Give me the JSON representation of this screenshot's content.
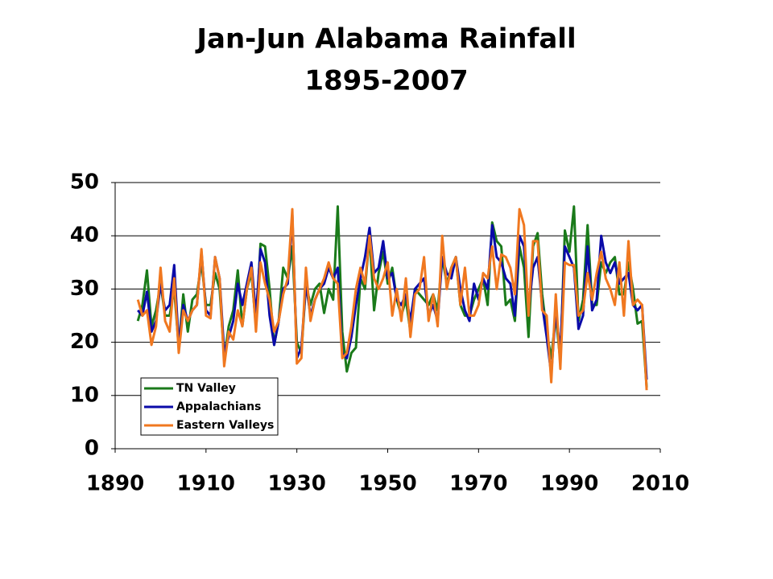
{
  "chart_data": {
    "type": "line",
    "title": "Jan-Jun Alabama Rainfall",
    "subtitle": "1895-2007",
    "x": [
      1895,
      1896,
      1897,
      1898,
      1899,
      1900,
      1901,
      1902,
      1903,
      1904,
      1905,
      1906,
      1907,
      1908,
      1909,
      1910,
      1911,
      1912,
      1913,
      1914,
      1915,
      1916,
      1917,
      1918,
      1919,
      1920,
      1921,
      1922,
      1923,
      1924,
      1925,
      1926,
      1927,
      1928,
      1929,
      1930,
      1931,
      1932,
      1933,
      1934,
      1935,
      1936,
      1937,
      1938,
      1939,
      1940,
      1941,
      1942,
      1943,
      1944,
      1945,
      1946,
      1947,
      1948,
      1949,
      1950,
      1951,
      1952,
      1953,
      1954,
      1955,
      1956,
      1957,
      1958,
      1959,
      1960,
      1961,
      1962,
      1963,
      1964,
      1965,
      1966,
      1967,
      1968,
      1969,
      1970,
      1971,
      1972,
      1973,
      1974,
      1975,
      1976,
      1977,
      1978,
      1979,
      1980,
      1981,
      1982,
      1983,
      1984,
      1985,
      1986,
      1987,
      1988,
      1989,
      1990,
      1991,
      1992,
      1993,
      1994,
      1995,
      1996,
      1997,
      1998,
      1999,
      2000,
      2001,
      2002,
      2003,
      2004,
      2005,
      2006,
      2007
    ],
    "series": [
      {
        "name": "TN Valley",
        "color": "#1a7a1a",
        "values": [
          24,
          27,
          33.5,
          23,
          26,
          31,
          25,
          25,
          30,
          19,
          29,
          22,
          28,
          29,
          35,
          27,
          27,
          33,
          30,
          17,
          23,
          26,
          33.5,
          23,
          30,
          33,
          23,
          38.5,
          38,
          30,
          19.5,
          24,
          34,
          32,
          38,
          20,
          18,
          31,
          27,
          30,
          31,
          25.5,
          30,
          28,
          45.5,
          22,
          14.5,
          18,
          19,
          32,
          30,
          40,
          26,
          33,
          37,
          31,
          34,
          28,
          25,
          28,
          22,
          30,
          29,
          28,
          27,
          29,
          26,
          36,
          31,
          34,
          36,
          27,
          25,
          25,
          28,
          30,
          32,
          27,
          42.5,
          39,
          38,
          27,
          28,
          24,
          38,
          34,
          21,
          38,
          40.5,
          29,
          22,
          17,
          25,
          16.5,
          41,
          37,
          45.5,
          24,
          28,
          42,
          27,
          27,
          35,
          33,
          35,
          36,
          29,
          29,
          35,
          30,
          23.5,
          24,
          11.5
        ]
      },
      {
        "name": "Appalachians",
        "color": "#0a0aa8",
        "values": [
          26,
          25,
          29.5,
          22,
          24,
          31,
          26,
          27,
          34.5,
          19.5,
          27,
          24,
          26,
          27,
          37,
          26,
          25,
          36,
          32,
          18,
          21,
          24,
          31,
          27,
          31,
          35,
          25,
          37.5,
          35,
          25,
          19.5,
          24,
          30,
          31,
          44,
          17,
          19,
          31,
          25,
          28,
          30,
          31,
          34,
          32,
          34,
          18,
          17,
          21,
          27,
          32,
          36,
          41.5,
          33,
          34,
          39,
          32,
          33,
          28,
          27,
          29,
          24,
          30,
          31,
          32,
          25,
          27,
          24,
          36,
          33,
          32,
          36,
          30,
          26,
          24,
          31,
          28,
          32,
          30,
          42,
          36,
          35,
          32,
          31,
          25,
          40,
          38,
          26,
          34,
          36,
          27,
          21,
          14,
          26,
          18,
          38,
          36,
          34,
          22.5,
          25,
          38,
          26,
          28,
          40,
          35,
          33,
          35,
          31,
          32,
          33,
          27,
          26,
          27,
          13
        ]
      },
      {
        "name": "Eastern Valleys",
        "color": "#f07820",
        "values": [
          28,
          25,
          26,
          19.5,
          23,
          34,
          24,
          22,
          32,
          18,
          26,
          24,
          26,
          27,
          37.5,
          25,
          24.5,
          36,
          32,
          15.5,
          22,
          20.5,
          26,
          23,
          30,
          34,
          22,
          35,
          31,
          28,
          22,
          24,
          29,
          32,
          45,
          16,
          17,
          34,
          24,
          28,
          30,
          32,
          35,
          32,
          31,
          17,
          18,
          23,
          30,
          34,
          31,
          40,
          32,
          30,
          32,
          35,
          25,
          30,
          24,
          32,
          21,
          29,
          30,
          36,
          24,
          29,
          23,
          40,
          30,
          34,
          36,
          27,
          34,
          25,
          25,
          27,
          33,
          32,
          38,
          30,
          36.5,
          36,
          34,
          29,
          45,
          42,
          25,
          39,
          39,
          26,
          25,
          12.5,
          29,
          15,
          35,
          34.5,
          34.5,
          25,
          26,
          33,
          28,
          33,
          37,
          32,
          30,
          27,
          35,
          25,
          39,
          27,
          28,
          27,
          11
        ]
      }
    ],
    "xlim": [
      1890,
      2010
    ],
    "xticks": [
      1890,
      1910,
      1930,
      1950,
      1970,
      1990,
      2010
    ],
    "ylim": [
      0,
      50
    ],
    "yticks": [
      0,
      10,
      20,
      30,
      40,
      50
    ],
    "grid": true,
    "legend": "lower left"
  }
}
